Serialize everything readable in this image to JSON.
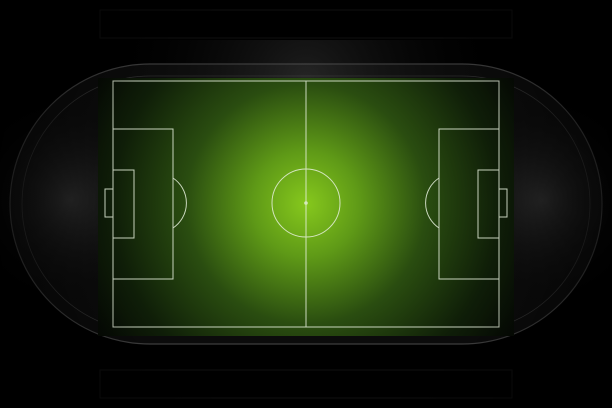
{
  "scene": {
    "subject": "stadium-top-view",
    "colors": {
      "background": "#000000",
      "pitch_glow_center": "#7fc21b",
      "pitch_glow_mid": "#2f5a12",
      "pitch_edge": "#0a1407",
      "track_dark": "#0b0b0b",
      "line_white": "#e8f2e0",
      "line_track": "#8a8a8a"
    }
  }
}
